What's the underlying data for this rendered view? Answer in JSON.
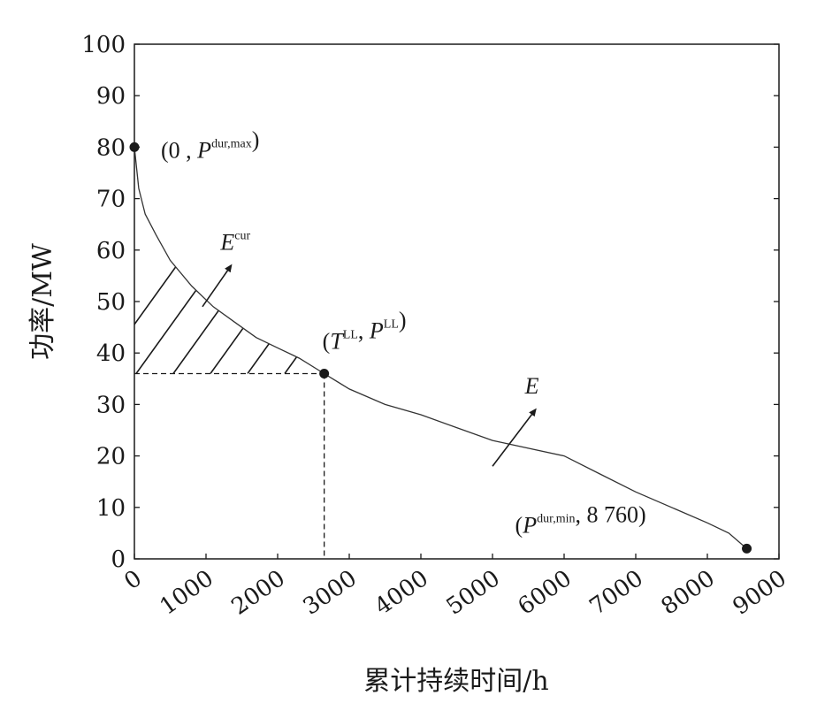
{
  "chart_data": {
    "type": "line",
    "xlabel": "累计持续时间/h",
    "ylabel": "功率/MW",
    "xlim": [
      0,
      9000
    ],
    "ylim": [
      0,
      100
    ],
    "xticks": [
      "0",
      "1000",
      "2000",
      "3000",
      "4000",
      "5000",
      "6000",
      "7000",
      "8000",
      "9000"
    ],
    "yticks": [
      "0",
      "10",
      "20",
      "30",
      "40",
      "50",
      "60",
      "70",
      "80",
      "90",
      "100"
    ],
    "grid": false,
    "series": [
      {
        "points": [
          [
            0,
            80
          ],
          [
            60,
            72
          ],
          [
            150,
            67
          ],
          [
            300,
            63
          ],
          [
            500,
            58
          ],
          [
            800,
            53
          ],
          [
            1100,
            49
          ],
          [
            1400,
            46
          ],
          [
            1700,
            43
          ],
          [
            2000,
            41
          ],
          [
            2300,
            39
          ],
          [
            2650,
            36
          ],
          [
            3000,
            33
          ],
          [
            3500,
            30
          ],
          [
            4000,
            28
          ],
          [
            4500,
            25.5
          ],
          [
            5000,
            23
          ],
          [
            5500,
            21.5
          ],
          [
            6000,
            20
          ],
          [
            6500,
            16.5
          ],
          [
            7000,
            13
          ],
          [
            7500,
            10
          ],
          [
            8000,
            7
          ],
          [
            8300,
            5
          ],
          [
            8550,
            2
          ]
        ]
      }
    ],
    "markers": [
      {
        "x": 0,
        "y": 80,
        "label_parts": [
          "(0 , ",
          "P",
          "dur,max",
          ")"
        ]
      },
      {
        "x": 2650,
        "y": 36,
        "label_parts": [
          "(",
          "T",
          "LL",
          ", ",
          "P",
          "LL",
          ")"
        ]
      },
      {
        "x": 8550,
        "y": 2,
        "label_parts": [
          "(",
          "P",
          "dur,min",
          ", 8 760)"
        ]
      }
    ],
    "shaded_region": {
      "level": 36,
      "x_from": 0,
      "x_to": 2650,
      "pattern": "hatch"
    },
    "reference_lines": {
      "horizontal_y": 36,
      "vertical_x": 2650,
      "style": "dashed"
    },
    "area_labels": [
      {
        "name_parts": [
          "E",
          "cur"
        ],
        "arrow_from": [
          950,
          49
        ],
        "arrow_to": [
          1350,
          57
        ]
      },
      {
        "name_parts": [
          "E",
          ""
        ],
        "arrow_from": [
          5000,
          18
        ],
        "arrow_to": [
          5600,
          29
        ]
      }
    ]
  }
}
